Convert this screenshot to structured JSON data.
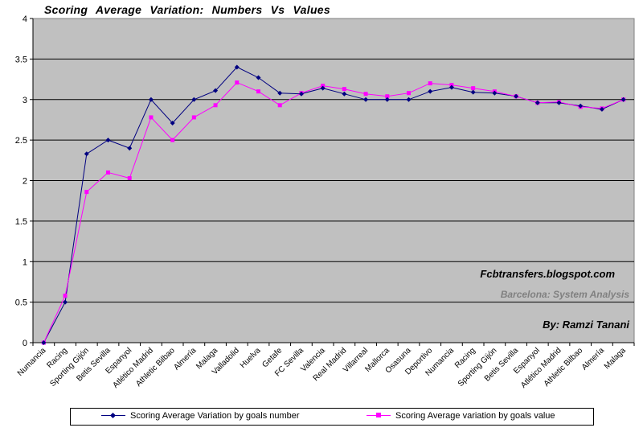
{
  "title": "Scoring  Average  Variation:  Numbers  Vs  Values",
  "colors": {
    "plot_bg": "#c0c0c0",
    "series1": "#000080",
    "series2": "#ff00ff",
    "grid": "#000000"
  },
  "annotations": {
    "site": "Fcbtransfers.blogspot.com",
    "subtitle": "Barcelona:  System  Analysis",
    "author": "By:  Ramzi  Tanani"
  },
  "chart_data": {
    "type": "line",
    "title": "Scoring  Average  Variation:  Numbers  Vs  Values",
    "categories": [
      "Numancia",
      "Racing",
      "Sporting Gijón",
      "Betis Sevilla",
      "Espanyol",
      "Atlético Madrid",
      "Athletic Bilbao",
      "Almería",
      "Malaga",
      "Valladolid",
      "Huelva",
      "Getafe",
      "FC Sevilla",
      "Valencia",
      "Real Madrid",
      "Villarreal",
      "Mallorca",
      "Osasuna",
      "Deportivo",
      "Numancia",
      "Racing",
      "Sporting Gijón",
      "Betis Sevilla",
      "Espanyol",
      "Atlético Madrid",
      "Athletic Bilbao",
      "Almería",
      "Malaga"
    ],
    "ylim": [
      0,
      4
    ],
    "yticks": [
      "0",
      "0.5",
      "1",
      "1.5",
      "2",
      "2.5",
      "3",
      "3.5",
      "4"
    ],
    "grid": true,
    "legend_position": "bottom",
    "series": [
      {
        "name": "Scoring Average Variation by goals number",
        "marker": "diamond",
        "values": [
          0,
          0.5,
          2.33,
          2.5,
          2.4,
          3.0,
          2.71,
          3.0,
          3.11,
          3.4,
          3.27,
          3.08,
          3.07,
          3.14,
          3.07,
          3.0,
          3.0,
          3.0,
          3.1,
          3.15,
          3.09,
          3.08,
          3.04,
          2.96,
          2.96,
          2.92,
          2.88,
          3.0
        ]
      },
      {
        "name": "Scoring Average variation by goals value",
        "marker": "square",
        "values": [
          0,
          0.58,
          1.86,
          2.1,
          2.03,
          2.78,
          2.5,
          2.78,
          2.93,
          3.21,
          3.1,
          2.93,
          3.08,
          3.17,
          3.13,
          3.07,
          3.04,
          3.08,
          3.2,
          3.18,
          3.14,
          3.1,
          3.04,
          2.96,
          2.97,
          2.91,
          2.89,
          3.0
        ]
      }
    ]
  }
}
